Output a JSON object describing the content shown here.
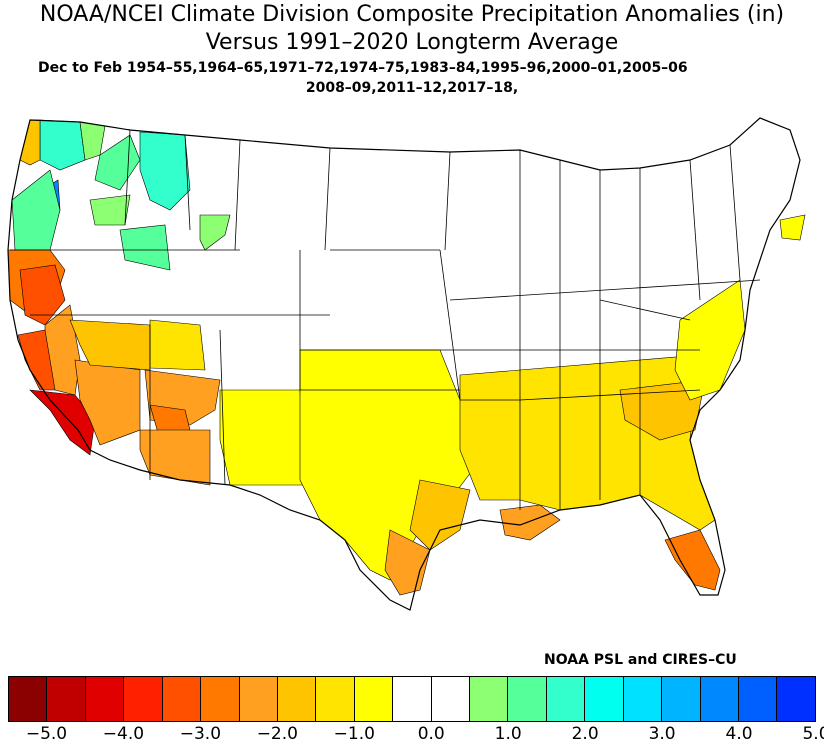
{
  "title": {
    "line1": "NOAA/NCEI Climate Division Composite Precipitation Anomalies (in)",
    "line2": "Versus 1991–2020 Longterm Average"
  },
  "subtitle": {
    "line1": "Dec to Feb  1954–55,1964–65,1971–72,1974–75,1983–84,1995–96,2000–01,2005–06",
    "line2": "2008–09,2011–12,2017–18,"
  },
  "credit": "NOAA PSL and CIRES–CU",
  "legend": {
    "colors": [
      "#8b0000",
      "#c00000",
      "#e00000",
      "#ff2000",
      "#ff5000",
      "#ff7800",
      "#ffa020",
      "#ffc400",
      "#ffe400",
      "#ffff00",
      "#ffffff",
      "#ffffff",
      "#8cff73",
      "#55ff99",
      "#33ffcc",
      "#00ffee",
      "#00e0ff",
      "#00b4ff",
      "#0088ff",
      "#0060ff",
      "#0030ff"
    ],
    "labels": [
      "−5.0",
      "−4.0",
      "−3.0",
      "−2.0",
      "−1.0",
      "0.0",
      "1.0",
      "2.0",
      "3.0",
      "4.0",
      "5.0"
    ],
    "label_positions": [
      1,
      3,
      5,
      7,
      9,
      11,
      13,
      15,
      17,
      19,
      21
    ]
  },
  "map_regions": [
    {
      "name": "wa-coast-north",
      "color": "#33ffcc"
    },
    {
      "name": "wa-olympic",
      "color": "#8cff73"
    },
    {
      "name": "wa-puget-blue",
      "color": "#0088ff"
    },
    {
      "name": "wa-cascades",
      "color": "#55ff99"
    },
    {
      "name": "wa-east",
      "color": "#8cff73"
    },
    {
      "name": "idaho-panhandle",
      "color": "#33ffcc"
    },
    {
      "name": "wa-southeast",
      "color": "#55ff99"
    },
    {
      "name": "or-northeast",
      "color": "#8cff73"
    },
    {
      "name": "wa-southwest",
      "color": "#ffc400"
    },
    {
      "name": "or-coast",
      "color": "#55ff99"
    },
    {
      "name": "ca-north-coast",
      "color": "#ff7800"
    },
    {
      "name": "ca-sacramento",
      "color": "#ff5000"
    },
    {
      "name": "ca-sierra",
      "color": "#ffa020"
    },
    {
      "name": "ca-central-coast",
      "color": "#ff5000"
    },
    {
      "name": "ca-south-coast",
      "color": "#e00000"
    },
    {
      "name": "ca-southeast-desert",
      "color": "#ffa020"
    },
    {
      "name": "nv-south",
      "color": "#ffc400"
    },
    {
      "name": "az-central",
      "color": "#ffa020"
    },
    {
      "name": "az-east-central",
      "color": "#ff7800"
    },
    {
      "name": "az-south",
      "color": "#ffa020"
    },
    {
      "name": "ut-south",
      "color": "#ffe400"
    },
    {
      "name": "nm",
      "color": "#ffff00"
    },
    {
      "name": "southern-plains",
      "color": "#ffff00"
    },
    {
      "name": "tx-east",
      "color": "#ffc400"
    },
    {
      "name": "tx-gulf",
      "color": "#ffa020"
    },
    {
      "name": "la-south",
      "color": "#ffa020"
    },
    {
      "name": "ms-delta",
      "color": "#8cff73"
    },
    {
      "name": "al-north",
      "color": "#8cff73"
    },
    {
      "name": "southeast",
      "color": "#ffe400"
    },
    {
      "name": "carolinas",
      "color": "#ffc400"
    },
    {
      "name": "fl-south",
      "color": "#ff7800"
    },
    {
      "name": "mid-atlantic",
      "color": "#ffff00"
    },
    {
      "name": "new-england-coast",
      "color": "#ffff00"
    }
  ]
}
